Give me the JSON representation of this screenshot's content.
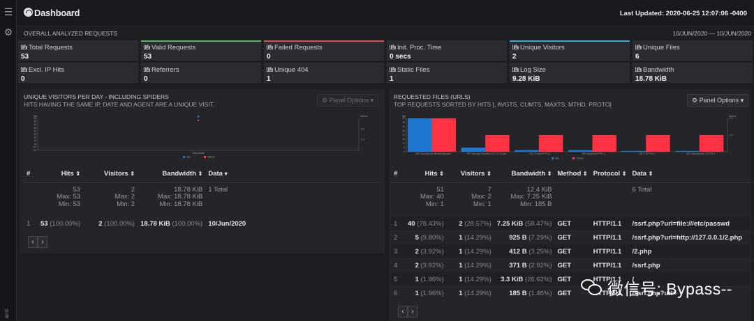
{
  "header": {
    "title": "Dashboard",
    "last_updated": "Last Updated: 2020-06-25 12:07:06 -0400"
  },
  "rail": {
    "menu_icon": "hamburger-icon",
    "settings_icon": "gear-icon",
    "vertical_text": "and"
  },
  "overview": {
    "title": "OVERALL ANALYZED REQUESTS",
    "date_range": "10/JUN/2020 — 10/JUN/2020",
    "cards": [
      {
        "label": "Total Requests",
        "value": "53",
        "accent": ""
      },
      {
        "label": "Valid Requests",
        "value": "53",
        "accent": "#5cb85c"
      },
      {
        "label": "Failed Requests",
        "value": "0",
        "accent": "#d9534f"
      },
      {
        "label": "Init. Proc. Time",
        "value": "0 secs",
        "accent": ""
      },
      {
        "label": "Unique Visitors",
        "value": "2",
        "accent": "#3fa9d8"
      },
      {
        "label": "Unique Files",
        "value": "6",
        "accent": ""
      },
      {
        "label": "Excl. IP Hits",
        "value": "0",
        "accent": ""
      },
      {
        "label": "Referrers",
        "value": "0",
        "accent": ""
      },
      {
        "label": "Unique 404",
        "value": "1",
        "accent": ""
      },
      {
        "label": "Static Files",
        "value": "1",
        "accent": ""
      },
      {
        "label": "Log Size",
        "value": "9.28 KiB",
        "accent": ""
      },
      {
        "label": "Bandwidth",
        "value": "18.78 KiB",
        "accent": ""
      }
    ]
  },
  "visitors_panel": {
    "title": "UNIQUE VISITORS PER DAY - INCLUDING SPIDERS",
    "subtitle": "HITS HAVING THE SAME IP, DATE AND AGENT ARE A UNIQUE VISIT.",
    "panel_options": "Panel Options",
    "columns": {
      "num": "#",
      "hits": "Hits",
      "visitors": "Visitors",
      "bandwidth": "Bandwidth",
      "data": "Data"
    },
    "summary": {
      "hits": "53",
      "hits_max": "Max: 53",
      "hits_min": "Min: 53",
      "visitors": "2",
      "visitors_max": "Max: 2",
      "visitors_min": "Min: 2",
      "bw": "18.78 KiB",
      "bw_max": "Max: 18.78 KiB",
      "bw_min": "Min: 18.78 KiB",
      "data": "1 Total"
    },
    "rows": [
      {
        "n": "1",
        "hits": "53",
        "hits_pct": "(100.00%)",
        "vis": "2",
        "vis_pct": "(100.00%)",
        "bw": "18.78 KiB",
        "bw_pct": "(100.00%)",
        "data": "10/Jun/2020"
      }
    ]
  },
  "requests_panel": {
    "title": "REQUESTED FILES (URLS)",
    "subtitle": "TOP REQUESTS SORTED BY HITS [, AVGTS, CUMTS, MAXTS, MTHD, PROTO]",
    "panel_options": "Panel Options",
    "columns": {
      "num": "#",
      "hits": "Hits",
      "visitors": "Visitors",
      "bandwidth": "Bandwidth",
      "method": "Method",
      "protocol": "Protocol",
      "data": "Data"
    },
    "summary": {
      "hits": "51",
      "hits_max": "Max: 40",
      "hits_min": "Min: 1",
      "visitors": "7",
      "visitors_max": "Max: 2",
      "visitors_min": "Min: 1",
      "bw": "12.4 KiB",
      "bw_max": "Max: 7.25 KiB",
      "bw_min": "Min: 185 B",
      "data": "6 Total"
    },
    "rows": [
      {
        "n": "1",
        "hits": "40",
        "hits_pct": "(78.43%)",
        "vis": "2",
        "vis_pct": "(28.57%)",
        "bw": "7.25 KiB",
        "bw_pct": "(58.47%)",
        "method": "GET",
        "proto": "HTTP/1.1",
        "data": "/ssrf.php?url=file:///etc/passwd"
      },
      {
        "n": "2",
        "hits": "5",
        "hits_pct": "(9.80%)",
        "vis": "1",
        "vis_pct": "(14.29%)",
        "bw": "925 B",
        "bw_pct": "(7.29%)",
        "method": "GET",
        "proto": "HTTP/1.1",
        "data": "/ssrf.php?url=http://127.0.0.1/2.php"
      },
      {
        "n": "3",
        "hits": "2",
        "hits_pct": "(3.92%)",
        "vis": "1",
        "vis_pct": "(14.29%)",
        "bw": "412 B",
        "bw_pct": "(3.25%)",
        "method": "GET",
        "proto": "HTTP/1.1",
        "data": "/2.php"
      },
      {
        "n": "4",
        "hits": "2",
        "hits_pct": "(3.92%)",
        "vis": "1",
        "vis_pct": "(14.29%)",
        "bw": "371 B",
        "bw_pct": "(2.92%)",
        "method": "GET",
        "proto": "HTTP/1.1",
        "data": "/ssrf.php"
      },
      {
        "n": "5",
        "hits": "1",
        "hits_pct": "(1.96%)",
        "vis": "1",
        "vis_pct": "(14.29%)",
        "bw": "3.3 KiB",
        "bw_pct": "(26.62%)",
        "method": "GET",
        "proto": "HTTP/1.1",
        "data": "/"
      },
      {
        "n": "6",
        "hits": "1",
        "hits_pct": "(1.96%)",
        "vis": "1",
        "vis_pct": "(14.29%)",
        "bw": "185 B",
        "bw_pct": "(1.46%)",
        "method": "GET",
        "proto": "HTTP/1.1",
        "data": "/ssrf.php?url="
      }
    ]
  },
  "chart_data": [
    {
      "type": "scatter",
      "x": [
        "10/Jun/2020"
      ],
      "series": [
        {
          "name": "Hits",
          "values": [
            53
          ],
          "color": "#1f77d0"
        },
        {
          "name": "Visitors",
          "values": [
            2
          ],
          "color": "#ff3344"
        }
      ],
      "ylabel": "Hits",
      "y2label": "Visitors",
      "y_ticks": [
        "0.0",
        "5.0",
        "10",
        "15",
        "20",
        "25",
        "30",
        "35",
        "40",
        "45",
        "50"
      ],
      "y2_ticks": [
        "2.0",
        "1.0"
      ]
    },
    {
      "type": "bar",
      "categories": [
        "GET /ssrf.php?url=file:///etc/passwd",
        "GET /ssrf.php?url=http://127.0.0.1/2.php",
        "GET /2.php HTTP/1.1",
        "GET /ssrf.php HTTP/1.1",
        "GET / HTTP/1.1",
        "GET /ssrf.php?url= HTTP/1.1"
      ],
      "series": [
        {
          "name": "Hits",
          "values": [
            40,
            5,
            2,
            2,
            1,
            1
          ],
          "color": "#1f77d0"
        },
        {
          "name": "Visitors",
          "values": [
            2,
            1,
            1,
            1,
            1,
            1
          ],
          "color": "#ff3344"
        }
      ],
      "ylabel": "Hits",
      "y2label": "Visitors",
      "y_ticks": [
        "0",
        "5",
        "10",
        "15",
        "20",
        "25",
        "30",
        "35",
        "40"
      ],
      "y2_ticks": [
        "2.0",
        "1.0"
      ],
      "ylim": [
        0,
        40
      ],
      "y2lim": [
        0,
        2
      ]
    }
  ],
  "watermark": {
    "text": "微信号: Bypass--"
  }
}
